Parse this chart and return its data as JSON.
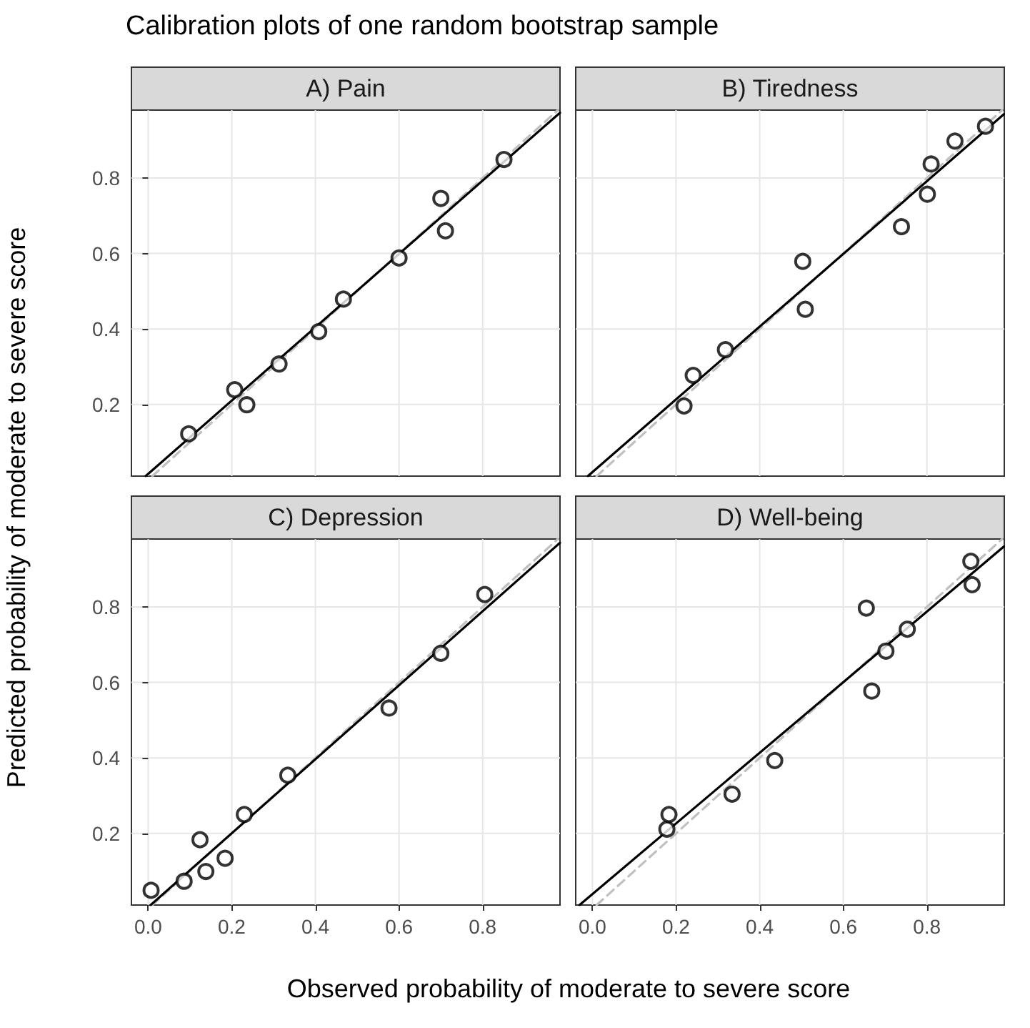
{
  "chart_data": [
    {
      "type": "scatter",
      "title": "A) Pain",
      "annotations": [
        "Calibration plots of one random bootstrap sample"
      ],
      "ylabel": "Predicted probability of moderate to severe score",
      "xlim": [
        -0.04,
        0.985
      ],
      "ylim": [
        0.01,
        0.98
      ],
      "xticks": [
        0,
        0.2,
        0.4,
        0.6,
        0.8
      ],
      "yticks": [
        0.2,
        0.4,
        0.6,
        0.8
      ],
      "grid": true,
      "tick_labels": "y",
      "series": [
        {
          "type": "scatter",
          "color": "#000000",
          "marker": "circle",
          "x": [
            0.097,
            0.207,
            0.236,
            0.313,
            0.408,
            0.467,
            0.6,
            0.7,
            0.711,
            0.851
          ],
          "values": [
            0.122,
            0.239,
            0.199,
            0.307,
            0.393,
            0.479,
            0.588,
            0.746,
            0.66,
            0.849
          ]
        },
        {
          "type": "line",
          "color": "#000000",
          "line_style": "solid",
          "x": [
            -0.006,
            0.985
          ],
          "values": [
            0.01,
            0.973
          ]
        },
        {
          "type": "line",
          "color": "#c0c0c0",
          "line_style": "dashed",
          "x": [
            0.01,
            0.98
          ],
          "values": [
            0.01,
            0.98
          ]
        }
      ]
    },
    {
      "type": "scatter",
      "title": "B) Tiredness",
      "xlim": [
        -0.04,
        0.985
      ],
      "ylim": [
        0.01,
        0.98
      ],
      "xticks": [
        0,
        0.2,
        0.4,
        0.6,
        0.8
      ],
      "yticks": [
        0.2,
        0.4,
        0.6,
        0.8
      ],
      "grid": true,
      "tick_labels": false,
      "series": [
        {
          "type": "scatter",
          "color": "#000000",
          "marker": "circle",
          "x": [
            0.219,
            0.241,
            0.318,
            0.503,
            0.509,
            0.739,
            0.801,
            0.81,
            0.867,
            0.94
          ],
          "values": [
            0.196,
            0.277,
            0.345,
            0.579,
            0.452,
            0.671,
            0.757,
            0.837,
            0.898,
            0.937
          ]
        },
        {
          "type": "line",
          "color": "#000000",
          "line_style": "solid",
          "x": [
            -0.011,
            0.984
          ],
          "values": [
            0.01,
            0.969
          ]
        },
        {
          "type": "line",
          "color": "#c0c0c0",
          "line_style": "dashed",
          "x": [
            0.01,
            0.98
          ],
          "values": [
            0.01,
            0.98
          ]
        }
      ]
    },
    {
      "type": "scatter",
      "title": "C) Depression",
      "xlabel": "Observed probability of moderate to severe score",
      "xlim": [
        -0.04,
        0.985
      ],
      "ylim": [
        0.01,
        0.98
      ],
      "xticks": [
        {
          "value": 0,
          "label": "0.0"
        },
        0.2,
        0.4,
        0.6,
        0.8
      ],
      "yticks": [
        0.2,
        0.4,
        0.6,
        0.8
      ],
      "grid": true,
      "series": [
        {
          "type": "scatter",
          "color": "#000000",
          "marker": "circle",
          "x": [
            0.007,
            0.086,
            0.124,
            0.138,
            0.184,
            0.23,
            0.334,
            0.576,
            0.7,
            0.805
          ],
          "values": [
            0.049,
            0.073,
            0.183,
            0.099,
            0.134,
            0.25,
            0.354,
            0.532,
            0.677,
            0.833
          ]
        },
        {
          "type": "line",
          "color": "#000000",
          "line_style": "solid",
          "x": [
            0.006,
            0.985
          ],
          "values": [
            0.01,
            0.97
          ]
        },
        {
          "type": "line",
          "color": "#c0c0c0",
          "line_style": "dashed",
          "x": [
            0.01,
            0.98
          ],
          "values": [
            0.01,
            0.98
          ]
        }
      ]
    },
    {
      "type": "scatter",
      "title": "D) Well-being",
      "xlim": [
        -0.04,
        0.985
      ],
      "ylim": [
        0.01,
        0.98
      ],
      "xticks": [
        {
          "value": 0,
          "label": "0.0"
        },
        0.2,
        0.4,
        0.6,
        0.8
      ],
      "yticks": [
        0.2,
        0.4,
        0.6,
        0.8
      ],
      "grid": true,
      "tick_labels": "x",
      "series": [
        {
          "type": "scatter",
          "color": "#000000",
          "marker": "circle",
          "x": [
            0.178,
            0.183,
            0.334,
            0.436,
            0.655,
            0.668,
            0.702,
            0.753,
            0.905,
            0.908
          ],
          "values": [
            0.211,
            0.25,
            0.304,
            0.393,
            0.797,
            0.577,
            0.683,
            0.741,
            0.921,
            0.859
          ]
        },
        {
          "type": "line",
          "color": "#000000",
          "line_style": "solid",
          "x": [
            -0.031,
            0.984
          ],
          "values": [
            0.01,
            0.96
          ]
        },
        {
          "type": "line",
          "color": "#c0c0c0",
          "line_style": "dashed",
          "x": [
            0.01,
            0.98
          ],
          "values": [
            0.01,
            0.98
          ]
        }
      ]
    }
  ]
}
